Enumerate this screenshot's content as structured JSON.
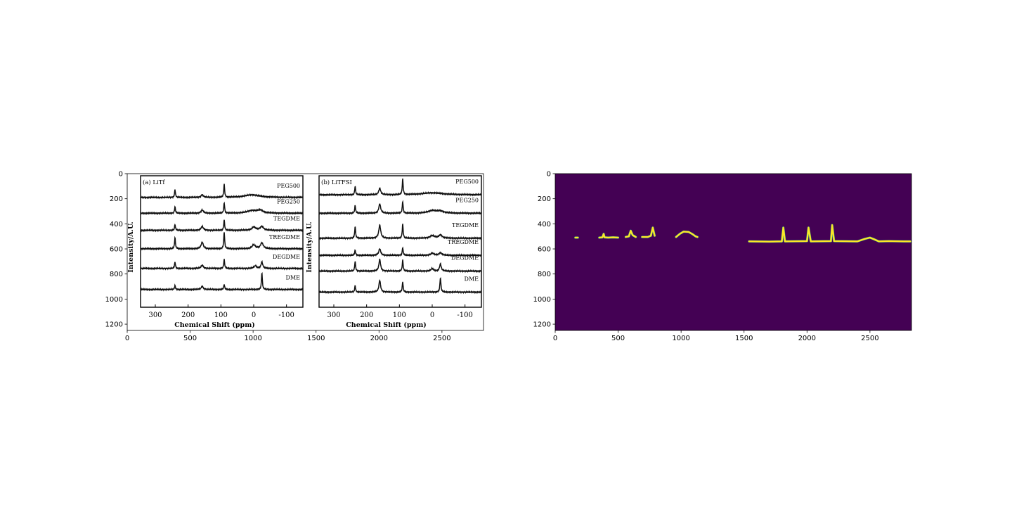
{
  "chart_data": [
    {
      "type": "image",
      "xlim": [
        0,
        2830
      ],
      "ylim": [
        1250,
        0
      ],
      "xticks": [
        0,
        500,
        1000,
        1500,
        2000,
        2500
      ],
      "yticks": [
        0,
        200,
        400,
        600,
        800,
        1000,
        1200
      ],
      "grid": false,
      "content": {
        "type": "line",
        "panels": [
          {
            "label": "(a) LiTf",
            "xlabel": "Chemical Shift (ppm)",
            "ylabel": "Intensity/A.U.",
            "xticks": [
              300,
              200,
              100,
              0,
              -100
            ],
            "xlim": [
              345,
              -150
            ],
            "series_names": [
              "PEG500",
              "PEG250",
              "TEGDME",
              "TREGDME",
              "DEGDME",
              "DME"
            ],
            "series": [
              {
                "name": "PEG500",
                "baseline": 0.08,
                "peaks": [
                  {
                    "x": 240,
                    "h": 0.06,
                    "w": 1.6
                  },
                  {
                    "x": 157,
                    "h": 0.02,
                    "w": 4
                  },
                  {
                    "x": 90,
                    "h": 0.1,
                    "w": 1.6
                  },
                  {
                    "x": 5,
                    "h": 0.02,
                    "w": 28
                  }
                ]
              },
              {
                "name": "PEG250",
                "baseline": 0.2,
                "peaks": [
                  {
                    "x": 240,
                    "h": 0.05,
                    "w": 1.6
                  },
                  {
                    "x": 157,
                    "h": 0.025,
                    "w": 4
                  },
                  {
                    "x": 90,
                    "h": 0.08,
                    "w": 1.6
                  },
                  {
                    "x": 5,
                    "h": 0.02,
                    "w": 18
                  },
                  {
                    "x": -20,
                    "h": 0.02,
                    "w": 10
                  }
                ]
              },
              {
                "name": "TEGDME",
                "baseline": 0.33,
                "peaks": [
                  {
                    "x": 240,
                    "h": 0.045,
                    "w": 1.6
                  },
                  {
                    "x": 157,
                    "h": 0.03,
                    "w": 4
                  },
                  {
                    "x": 90,
                    "h": 0.08,
                    "w": 1.6
                  },
                  {
                    "x": 0,
                    "h": 0.025,
                    "w": 7
                  },
                  {
                    "x": -25,
                    "h": 0.03,
                    "w": 6
                  }
                ]
              },
              {
                "name": "TREGDME",
                "baseline": 0.47,
                "peaks": [
                  {
                    "x": 240,
                    "h": 0.085,
                    "w": 1.6
                  },
                  {
                    "x": 157,
                    "h": 0.05,
                    "w": 4
                  },
                  {
                    "x": 90,
                    "h": 0.13,
                    "w": 1.6
                  },
                  {
                    "x": 0,
                    "h": 0.03,
                    "w": 6
                  },
                  {
                    "x": -25,
                    "h": 0.045,
                    "w": 5
                  }
                ]
              },
              {
                "name": "DEGDME",
                "baseline": 0.62,
                "peaks": [
                  {
                    "x": 240,
                    "h": 0.05,
                    "w": 1.6
                  },
                  {
                    "x": 157,
                    "h": 0.025,
                    "w": 4
                  },
                  {
                    "x": 90,
                    "h": 0.07,
                    "w": 1.6
                  },
                  {
                    "x": -5,
                    "h": 0.02,
                    "w": 5
                  },
                  {
                    "x": -25,
                    "h": 0.05,
                    "w": 3
                  }
                ]
              },
              {
                "name": "DME",
                "baseline": 0.78,
                "peaks": [
                  {
                    "x": 240,
                    "h": 0.03,
                    "w": 1.6
                  },
                  {
                    "x": 157,
                    "h": 0.025,
                    "w": 3.5
                  },
                  {
                    "x": 90,
                    "h": 0.04,
                    "w": 1.6
                  },
                  {
                    "x": -25,
                    "h": 0.13,
                    "w": 1.6
                  }
                ]
              }
            ]
          },
          {
            "label": "(b) LiTFSI",
            "xlabel": "Chemical Shift (ppm)",
            "ylabel": "Intensity/A.U.",
            "xticks": [
              300,
              200,
              100,
              0,
              -100
            ],
            "xlim": [
              345,
              -150
            ],
            "series_names": [
              "PEG500",
              "PEG250",
              "TEGDME",
              "TREGDME",
              "DEGDME",
              "DME"
            ],
            "series": [
              {
                "name": "PEG500",
                "baseline": 0.06,
                "peaks": [
                  {
                    "x": 235,
                    "h": 0.065,
                    "w": 1.6
                  },
                  {
                    "x": 160,
                    "h": 0.05,
                    "w": 3.5
                  },
                  {
                    "x": 90,
                    "h": 0.12,
                    "w": 1.6
                  },
                  {
                    "x": 0,
                    "h": 0.015,
                    "w": 40
                  }
                ]
              },
              {
                "name": "PEG250",
                "baseline": 0.2,
                "peaks": [
                  {
                    "x": 235,
                    "h": 0.06,
                    "w": 1.6
                  },
                  {
                    "x": 160,
                    "h": 0.07,
                    "w": 3.5
                  },
                  {
                    "x": 90,
                    "h": 0.09,
                    "w": 1.6
                  },
                  {
                    "x": 0,
                    "h": 0.02,
                    "w": 15
                  },
                  {
                    "x": -25,
                    "h": 0.015,
                    "w": 12
                  }
                ]
              },
              {
                "name": "TEGDME",
                "baseline": 0.39,
                "peaks": [
                  {
                    "x": 235,
                    "h": 0.09,
                    "w": 1.6
                  },
                  {
                    "x": 160,
                    "h": 0.1,
                    "w": 3.5
                  },
                  {
                    "x": 90,
                    "h": 0.11,
                    "w": 1.6
                  },
                  {
                    "x": 0,
                    "h": 0.02,
                    "w": 8
                  },
                  {
                    "x": -25,
                    "h": 0.025,
                    "w": 6
                  }
                ]
              },
              {
                "name": "TREGDME",
                "baseline": 0.52,
                "peaks": [
                  {
                    "x": 235,
                    "h": 0.04,
                    "w": 1.6
                  },
                  {
                    "x": 160,
                    "h": 0.05,
                    "w": 3.5
                  },
                  {
                    "x": 90,
                    "h": 0.06,
                    "w": 1.6
                  },
                  {
                    "x": 0,
                    "h": 0.015,
                    "w": 6
                  },
                  {
                    "x": -25,
                    "h": 0.02,
                    "w": 5
                  }
                ]
              },
              {
                "name": "DEGDME",
                "baseline": 0.64,
                "peaks": [
                  {
                    "x": 235,
                    "h": 0.075,
                    "w": 1.6
                  },
                  {
                    "x": 160,
                    "h": 0.09,
                    "w": 3
                  },
                  {
                    "x": 90,
                    "h": 0.085,
                    "w": 1.6
                  },
                  {
                    "x": 0,
                    "h": 0.02,
                    "w": 4
                  },
                  {
                    "x": -25,
                    "h": 0.055,
                    "w": 3
                  }
                ]
              },
              {
                "name": "DME",
                "baseline": 0.8,
                "peaks": [
                  {
                    "x": 235,
                    "h": 0.05,
                    "w": 1.6
                  },
                  {
                    "x": 160,
                    "h": 0.09,
                    "w": 3
                  },
                  {
                    "x": 90,
                    "h": 0.08,
                    "w": 1.6
                  },
                  {
                    "x": -25,
                    "h": 0.11,
                    "w": 1.8
                  }
                ]
              }
            ]
          }
        ]
      }
    },
    {
      "type": "heatmap",
      "xlim": [
        0,
        2830
      ],
      "ylim": [
        1250,
        0
      ],
      "xticks": [
        0,
        500,
        1000,
        1500,
        2000,
        2500
      ],
      "yticks": [
        0,
        200,
        400,
        600,
        800,
        1000,
        1200
      ],
      "grid": false,
      "colors": {
        "background": "#440154",
        "foreground": "#fde725",
        "edge": "#21908d"
      },
      "mask_segments": [
        {
          "polyline": [
            [
              160,
              510
            ],
            [
              180,
              510
            ]
          ]
        },
        {
          "polyline": [
            [
              350,
              510
            ],
            [
              375,
              508
            ],
            [
              385,
              480
            ],
            [
              392,
              508
            ],
            [
              420,
              510
            ],
            [
              460,
              508
            ],
            [
              500,
              510
            ]
          ]
        },
        {
          "polyline": [
            [
              560,
              505
            ],
            [
              585,
              500
            ],
            [
              600,
              455
            ],
            [
              615,
              490
            ],
            [
              640,
              505
            ]
          ]
        },
        {
          "polyline": [
            [
              690,
              505
            ],
            [
              735,
              505
            ],
            [
              760,
              495
            ],
            [
              775,
              430
            ],
            [
              790,
              495
            ]
          ]
        },
        {
          "polyline": [
            [
              960,
              505
            ],
            [
              990,
              480
            ],
            [
              1020,
              462
            ],
            [
              1060,
              465
            ],
            [
              1090,
              482
            ],
            [
              1115,
              500
            ],
            [
              1130,
              505
            ]
          ]
        },
        {
          "polyline": [
            [
              1540,
              540
            ],
            [
              1700,
              542
            ],
            [
              1800,
              540
            ],
            [
              1812,
              430
            ],
            [
              1825,
              540
            ],
            [
              2000,
              538
            ],
            [
              2012,
              430
            ],
            [
              2030,
              540
            ],
            [
              2190,
              538
            ],
            [
              2200,
              410
            ],
            [
              2215,
              538
            ],
            [
              2400,
              540
            ],
            [
              2460,
              520
            ],
            [
              2500,
              510
            ],
            [
              2530,
              522
            ],
            [
              2570,
              540
            ],
            [
              2650,
              538
            ],
            [
              2770,
              540
            ],
            [
              2820,
              540
            ]
          ]
        }
      ]
    }
  ]
}
